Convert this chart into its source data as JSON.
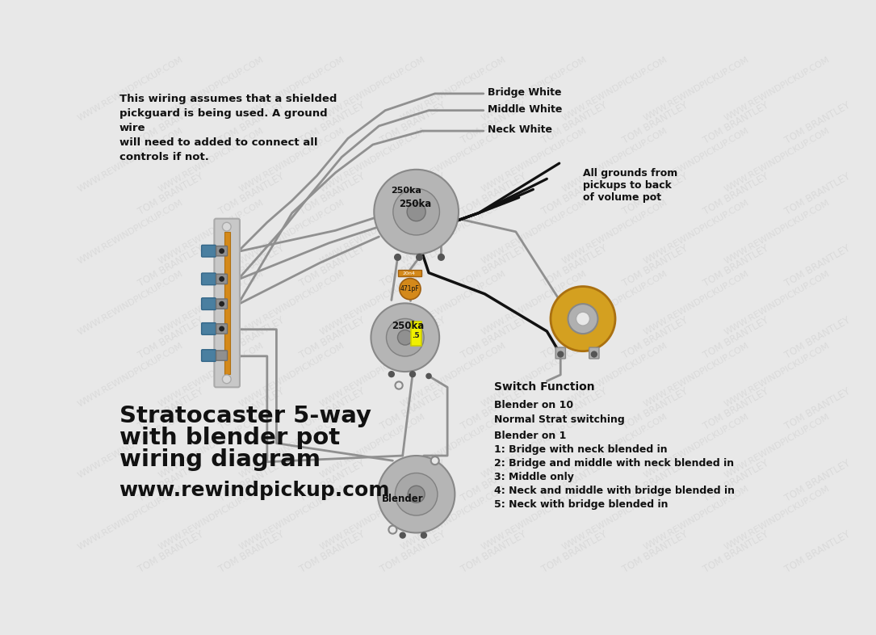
{
  "background_color": "#e8e8e8",
  "wire_gray": "#909090",
  "wire_black": "#111111",
  "pot_outer": "#b5b5b5",
  "pot_inner": "#999999",
  "pot_shaft": "#888888",
  "switch_plate": "#c8c8c8",
  "switch_strip": "#d4891a",
  "switch_contact_blue": "#4a7fa0",
  "switch_screw": "#404040",
  "cap_orange": "#d4891a",
  "cap_yellow": "#f0f000",
  "jack_gold": "#d4a020",
  "jack_gray": "#a0a0a0",
  "dot_color": "#555555",
  "text_color": "#111111",
  "annotation": "This wiring assumes that a shielded\npickguard is being used. A ground\nwire\nwill need to added to connect all\ncontrols if not.",
  "label_bridge": "Bridge White",
  "label_middle": "Middle White",
  "label_neck": "Neck White",
  "label_grounds": "All grounds from\npickups to back\nof volume pot",
  "label_switch_fn": "Switch Function",
  "label_b10": "Blender on 10\nNormal Strat switching",
  "label_b1_title": "Blender on 1",
  "label_b1_lines": [
    "1: Bridge with neck blended in",
    "2: Bridge and middle with neck blended in",
    "3: Middle only",
    "4: Neck and middle with bridge blended in",
    "5: Neck with bridge blended in"
  ],
  "title_line1": "Stratocaster 5-way",
  "title_line2": "with blender pot",
  "title_line3": "wiring diagram",
  "website": "www.rewindpickup.com"
}
